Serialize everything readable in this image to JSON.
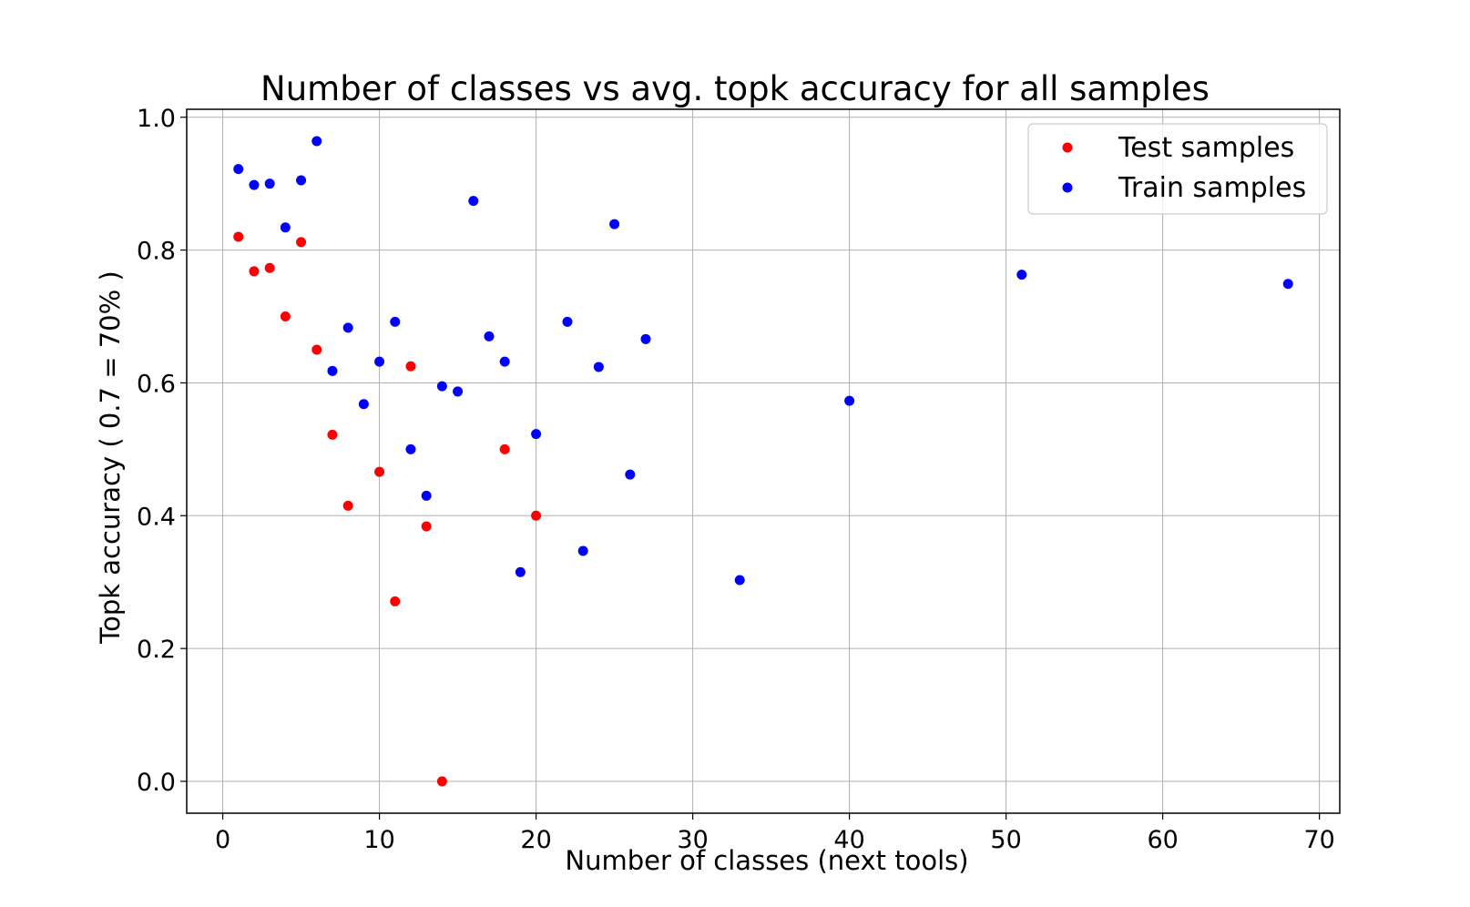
{
  "chart_data": {
    "type": "scatter",
    "title": "Number of classes vs avg. topk accuracy for all samples",
    "xlabel": "Number of classes (next tools)",
    "ylabel": "Topk accuracy ( 0.7 = 70% )",
    "xlim": [
      -2.3,
      71.3
    ],
    "ylim": [
      -0.048,
      1.012
    ],
    "x_ticks": [
      0,
      10,
      20,
      30,
      40,
      50,
      60,
      70
    ],
    "y_ticks": [
      0.0,
      0.2,
      0.4,
      0.6,
      0.8,
      1.0
    ],
    "x_tick_labels": [
      "0",
      "10",
      "20",
      "30",
      "40",
      "50",
      "60",
      "70"
    ],
    "y_tick_labels": [
      "0.0",
      "0.2",
      "0.4",
      "0.6",
      "0.8",
      "1.0"
    ],
    "grid": true,
    "legend_position": "top-right",
    "series": [
      {
        "name": "Test samples",
        "color": "#ff0000",
        "points": [
          {
            "x": 1,
            "y": 0.82
          },
          {
            "x": 2,
            "y": 0.768
          },
          {
            "x": 3,
            "y": 0.773
          },
          {
            "x": 4,
            "y": 0.7
          },
          {
            "x": 5,
            "y": 0.812
          },
          {
            "x": 6,
            "y": 0.65
          },
          {
            "x": 7,
            "y": 0.522
          },
          {
            "x": 8,
            "y": 0.415
          },
          {
            "x": 10,
            "y": 0.466
          },
          {
            "x": 11,
            "y": 0.271
          },
          {
            "x": 12,
            "y": 0.625
          },
          {
            "x": 13,
            "y": 0.384
          },
          {
            "x": 14,
            "y": 0.0
          },
          {
            "x": 18,
            "y": 0.5
          },
          {
            "x": 20,
            "y": 0.4
          }
        ]
      },
      {
        "name": "Train samples",
        "color": "#0000ff",
        "points": [
          {
            "x": 1,
            "y": 0.922
          },
          {
            "x": 2,
            "y": 0.898
          },
          {
            "x": 3,
            "y": 0.9
          },
          {
            "x": 4,
            "y": 0.834
          },
          {
            "x": 5,
            "y": 0.905
          },
          {
            "x": 6,
            "y": 0.964
          },
          {
            "x": 7,
            "y": 0.618
          },
          {
            "x": 8,
            "y": 0.683
          },
          {
            "x": 9,
            "y": 0.568
          },
          {
            "x": 10,
            "y": 0.632
          },
          {
            "x": 11,
            "y": 0.692
          },
          {
            "x": 12,
            "y": 0.5
          },
          {
            "x": 13,
            "y": 0.43
          },
          {
            "x": 14,
            "y": 0.595
          },
          {
            "x": 15,
            "y": 0.587
          },
          {
            "x": 16,
            "y": 0.874
          },
          {
            "x": 17,
            "y": 0.67
          },
          {
            "x": 18,
            "y": 0.632
          },
          {
            "x": 19,
            "y": 0.315
          },
          {
            "x": 20,
            "y": 0.523
          },
          {
            "x": 22,
            "y": 0.692
          },
          {
            "x": 23,
            "y": 0.347
          },
          {
            "x": 24,
            "y": 0.624
          },
          {
            "x": 25,
            "y": 0.839
          },
          {
            "x": 26,
            "y": 0.462
          },
          {
            "x": 27,
            "y": 0.666
          },
          {
            "x": 33,
            "y": 0.303
          },
          {
            "x": 40,
            "y": 0.573
          },
          {
            "x": 51,
            "y": 0.763
          },
          {
            "x": 68,
            "y": 0.749
          }
        ]
      }
    ]
  }
}
